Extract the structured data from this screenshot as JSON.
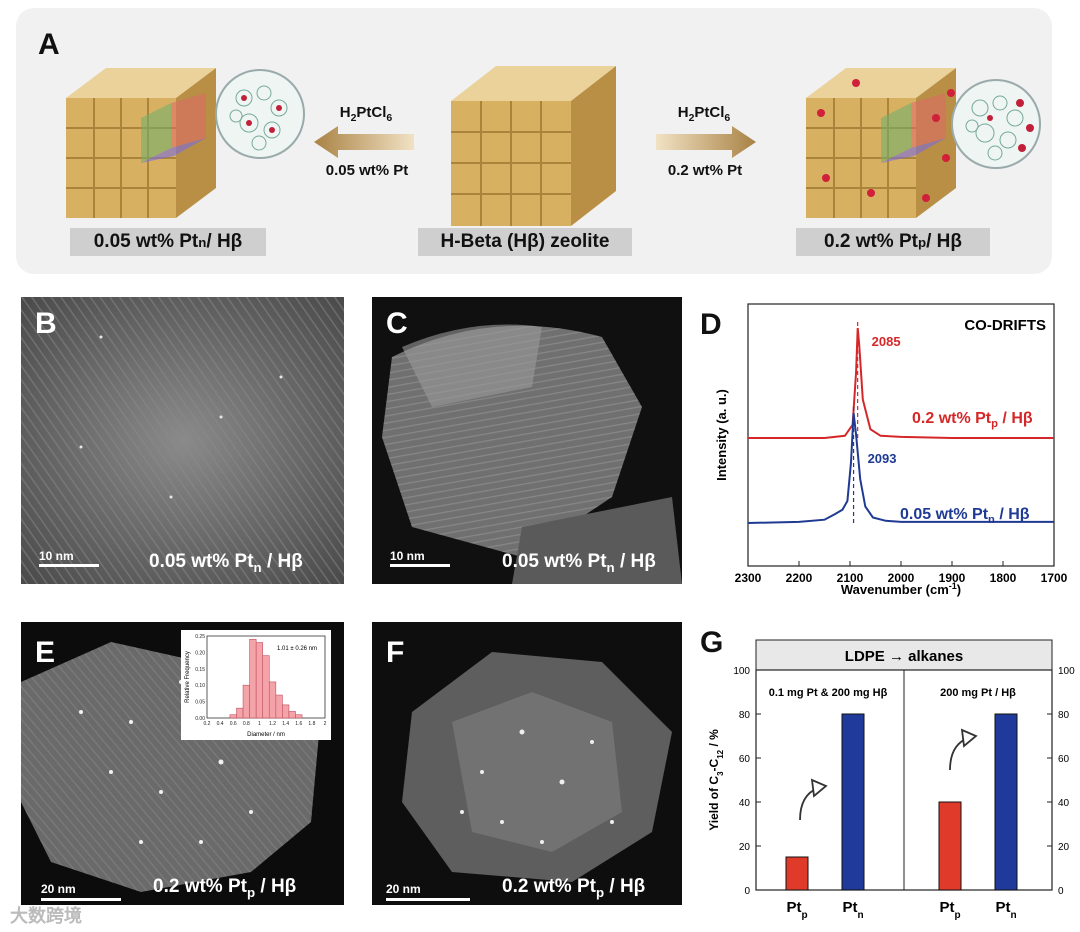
{
  "panel_a": {
    "letter": "A",
    "left_reagent": "H2PtCl6",
    "left_loading": "0.05 wt% Pt",
    "right_reagent": "H2PtCl6",
    "right_loading": "0.2 wt% Pt",
    "caption_left_main": "0.05 wt% Pt",
    "caption_left_sub": "n",
    "caption_left_tail": " / Hβ",
    "caption_center": "H-Beta (Hβ) zeolite",
    "caption_right_main": "0.2 wt% Pt",
    "caption_right_sub": "p",
    "caption_right_tail": " / Hβ"
  },
  "panel_b": {
    "letter": "B",
    "scale": "10 nm",
    "label_main": "0.05 wt% Pt",
    "label_sub": "n",
    "label_tail": " / Hβ"
  },
  "panel_c": {
    "letter": "C",
    "scale": "10 nm",
    "label_main": "0.05 wt% Pt",
    "label_sub": "n",
    "label_tail": " / Hβ"
  },
  "panel_e": {
    "letter": "E",
    "scale": "20 nm",
    "label_main": "0.2 wt% Pt",
    "label_sub": "p",
    "label_tail": " / Hβ",
    "inset_note": "1.01 ± 0.26 nm",
    "inset_xlabel": "Diameter / nm",
    "inset_ylabel": "Relative Frequency"
  },
  "panel_f": {
    "letter": "F",
    "scale": "20 nm",
    "label_main": "0.2 wt% Pt",
    "label_sub": "p",
    "label_tail": " / Hβ"
  },
  "watermark": "大数跨境",
  "chart_data": [
    {
      "type": "line",
      "panel": "D",
      "title": "CO-DRIFTS",
      "xlabel": "Wavenumber (cm-1)",
      "ylabel": "Intensity (a. u.)",
      "xlim": [
        2300,
        1700
      ],
      "xticks": [
        2300,
        2200,
        2100,
        2000,
        1900,
        1800,
        1700
      ],
      "series": [
        {
          "name": "0.2 wt% Pt_p / Hβ",
          "color": "#d62728",
          "peak": 2085,
          "peak_label": "2085",
          "x": [
            2300,
            2200,
            2150,
            2110,
            2095,
            2088,
            2085,
            2082,
            2075,
            2060,
            2040,
            2000,
            1900,
            1800,
            1700
          ],
          "y": [
            0.0,
            0.0,
            0.0,
            0.02,
            0.12,
            0.6,
            1.0,
            0.85,
            0.35,
            0.08,
            0.02,
            0.01,
            0.0,
            0.0,
            0.0
          ]
        },
        {
          "name": "0.05 wt% Pt_n / Hβ",
          "color": "#1f3a93",
          "peak": 2093,
          "peak_label": "2093",
          "x": [
            2300,
            2200,
            2150,
            2130,
            2115,
            2105,
            2098,
            2093,
            2088,
            2080,
            2070,
            2055,
            2030,
            2000,
            1900,
            1800,
            1700
          ],
          "y": [
            0.0,
            0.01,
            0.03,
            0.08,
            0.12,
            0.2,
            0.55,
            1.0,
            0.8,
            0.4,
            0.15,
            0.05,
            0.02,
            0.01,
            0.01,
            0.01,
            0.01
          ]
        }
      ]
    },
    {
      "type": "bar",
      "panel": "G",
      "title": "LDPE → alkanes",
      "ylabel": "Yield of C3-C12 / %",
      "ylim": [
        0,
        100
      ],
      "yticks": [
        0,
        20,
        40,
        60,
        80,
        100
      ],
      "groups": [
        {
          "name": "0.1 mg Pt & 200 mg Hβ",
          "categories": [
            "Pt_p",
            "Pt_n"
          ],
          "values": [
            15,
            80
          ],
          "colors": [
            "#e03a2a",
            "#1f3a9a"
          ]
        },
        {
          "name": "200 mg Pt / Hβ",
          "categories": [
            "Pt_p",
            "Pt_n"
          ],
          "values": [
            40,
            80
          ],
          "colors": [
            "#e03a2a",
            "#1f3a9a"
          ]
        }
      ]
    },
    {
      "type": "bar",
      "panel": "E-inset",
      "xlabel": "Diameter / nm",
      "ylabel": "Relative Frequency",
      "note": "1.01 ± 0.26 nm",
      "xlim": [
        0.2,
        2.0
      ],
      "ylim": [
        0,
        0.25
      ],
      "xticks": [
        "0.2",
        "0.4",
        "0.6",
        "0.8",
        "1",
        "1.2",
        "1.4",
        "1.6",
        "1.8",
        "2"
      ],
      "yticks": [
        "0.00",
        "0.05",
        "0.10",
        "0.15",
        "0.20",
        "0.25"
      ],
      "bins": [
        0.6,
        0.7,
        0.8,
        0.9,
        1.0,
        1.1,
        1.2,
        1.3,
        1.4,
        1.5,
        1.6
      ],
      "values": [
        0.01,
        0.03,
        0.1,
        0.24,
        0.23,
        0.19,
        0.11,
        0.07,
        0.04,
        0.02,
        0.01
      ]
    }
  ]
}
